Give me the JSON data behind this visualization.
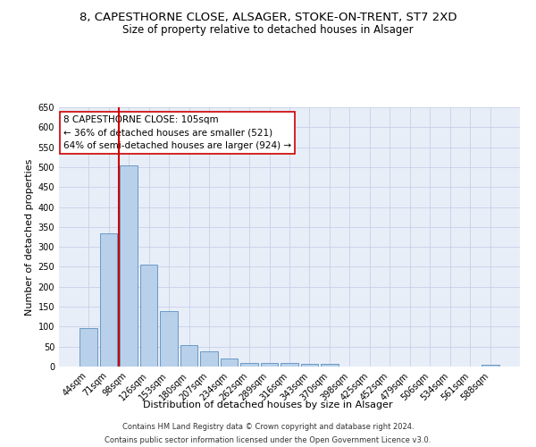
{
  "title_line1": "8, CAPESTHORNE CLOSE, ALSAGER, STOKE-ON-TRENT, ST7 2XD",
  "title_line2": "Size of property relative to detached houses in Alsager",
  "xlabel": "Distribution of detached houses by size in Alsager",
  "ylabel": "Number of detached properties",
  "categories": [
    "44sqm",
    "71sqm",
    "98sqm",
    "126sqm",
    "153sqm",
    "180sqm",
    "207sqm",
    "234sqm",
    "262sqm",
    "289sqm",
    "316sqm",
    "343sqm",
    "370sqm",
    "398sqm",
    "425sqm",
    "452sqm",
    "479sqm",
    "506sqm",
    "534sqm",
    "561sqm",
    "588sqm"
  ],
  "values": [
    97,
    335,
    505,
    255,
    138,
    54,
    37,
    21,
    10,
    10,
    10,
    7,
    7,
    0,
    0,
    0,
    0,
    0,
    0,
    0,
    5
  ],
  "bar_color": "#b8d0ea",
  "bar_edge_color": "#5a8fc0",
  "vline_color": "#cc0000",
  "ylim_max": 650,
  "yticks": [
    0,
    50,
    100,
    150,
    200,
    250,
    300,
    350,
    400,
    450,
    500,
    550,
    600,
    650
  ],
  "annotation_text": "8 CAPESTHORNE CLOSE: 105sqm\n← 36% of detached houses are smaller (521)\n64% of semi-detached houses are larger (924) →",
  "footer_line1": "Contains HM Land Registry data © Crown copyright and database right 2024.",
  "footer_line2": "Contains public sector information licensed under the Open Government Licence v3.0.",
  "bg_color": "#e8eef8",
  "grid_color": "#c8d0e8",
  "title1_fontsize": 9.5,
  "title2_fontsize": 8.5,
  "axis_label_fontsize": 8,
  "tick_fontsize": 7,
  "annot_fontsize": 7.5,
  "footer_fontsize": 6
}
